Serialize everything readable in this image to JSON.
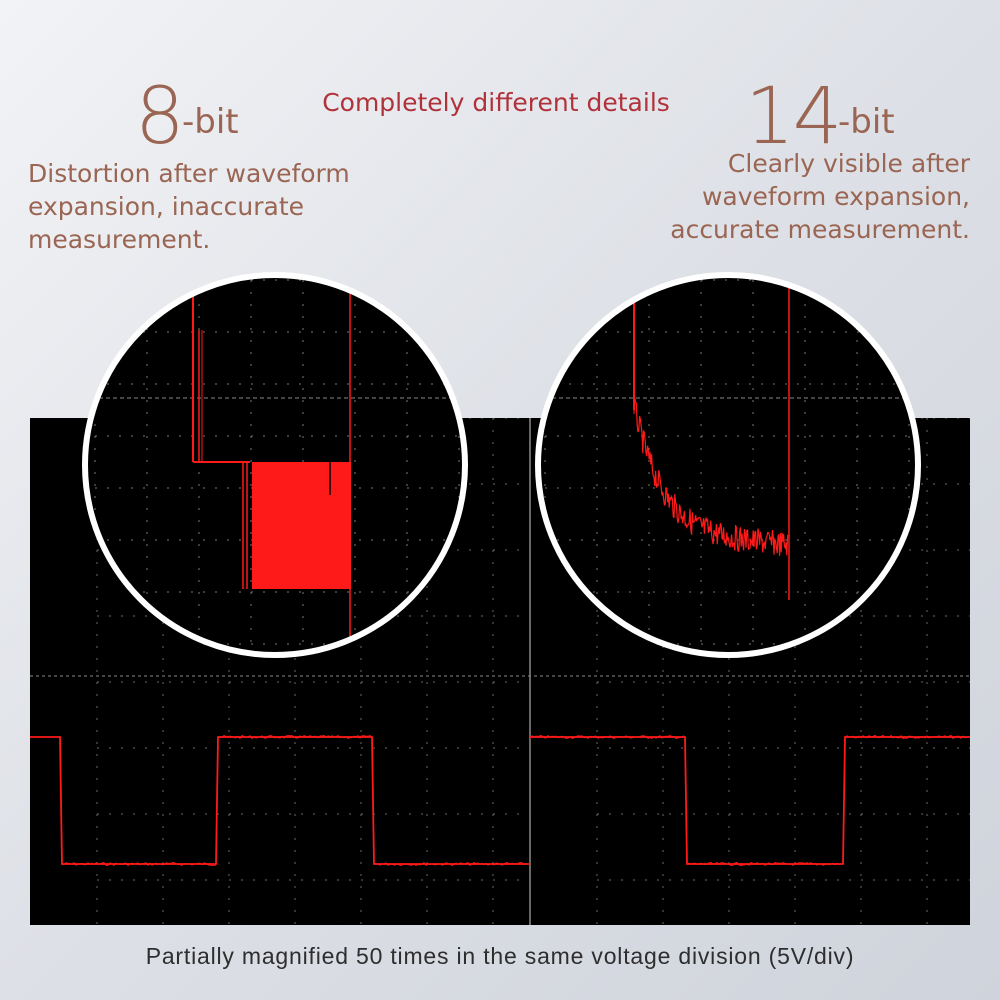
{
  "left": {
    "bit_number": "8",
    "bit_suffix": "-bit",
    "description": [
      "Distortion after waveform",
      "expansion, inaccurate",
      "measurement."
    ]
  },
  "headline": "Completely different details",
  "right": {
    "bit_number": "14",
    "bit_suffix": "-bit",
    "description": [
      "Clearly visible after",
      "waveform expansion,",
      "accurate measurement."
    ]
  },
  "footer": "Partially magnified 50 times in the same voltage division (5V/div)",
  "colors": {
    "trace": "#ff1a1a",
    "screen": "#000000",
    "grid": "#7a7a7a",
    "accent_text": "#9a6552",
    "headline_text": "#b0323a"
  },
  "scope": {
    "signal": "square-wave",
    "magnification": "50x",
    "voltage_division": "5V/div"
  }
}
